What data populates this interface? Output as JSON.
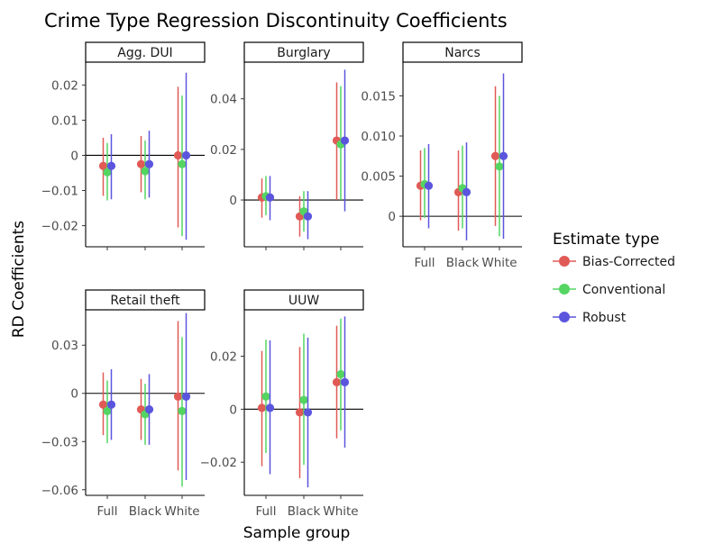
{
  "chart_data": {
    "type": "scatter",
    "title": "Crime Type Regression Discontinuity Coefficients",
    "xlabel": "Sample group",
    "ylabel": "RD Coefficients",
    "categories": [
      "Full",
      "Black",
      "White"
    ],
    "legend": {
      "title": "Estimate type",
      "placement": "right",
      "entries": [
        {
          "name": "Bias-Corrected",
          "color": "#e05a56"
        },
        {
          "name": "Conventional",
          "color": "#54d562"
        },
        {
          "name": "Robust",
          "color": "#5b55de"
        }
      ]
    },
    "panels": [
      {
        "label": "Agg. DUI",
        "ylim": [
          -0.026,
          0.0265
        ],
        "yticks": [
          -0.02,
          -0.01,
          0,
          0.01,
          0.02
        ],
        "ytick_labels": [
          "−0.02",
          "−0.01",
          "0",
          "0.01",
          "0.02"
        ],
        "show_xticks": false,
        "series": [
          {
            "name": "Bias-Corrected",
            "points": [
              {
                "x": "Full",
                "y": -0.003,
                "lo": -0.0115,
                "hi": 0.005
              },
              {
                "x": "Black",
                "y": -0.0025,
                "lo": -0.0105,
                "hi": 0.0055
              },
              {
                "x": "White",
                "y": 0.0,
                "lo": -0.0205,
                "hi": 0.0195
              }
            ]
          },
          {
            "name": "Conventional",
            "points": [
              {
                "x": "Full",
                "y": -0.0048,
                "lo": -0.0128,
                "hi": 0.0035
              },
              {
                "x": "Black",
                "y": -0.0045,
                "lo": -0.0125,
                "hi": 0.0042
              },
              {
                "x": "White",
                "y": -0.0025,
                "lo": -0.023,
                "hi": 0.017
              }
            ]
          },
          {
            "name": "Robust",
            "points": [
              {
                "x": "Full",
                "y": -0.003,
                "lo": -0.0125,
                "hi": 0.006
              },
              {
                "x": "Black",
                "y": -0.0025,
                "lo": -0.012,
                "hi": 0.007
              },
              {
                "x": "White",
                "y": 0.0,
                "lo": -0.024,
                "hi": 0.0235
              }
            ]
          }
        ]
      },
      {
        "label": "Burglary",
        "ylim": [
          -0.0185,
          0.0545
        ],
        "yticks": [
          0,
          0.02,
          0.04
        ],
        "ytick_labels": [
          "0",
          "0.02",
          "0.04"
        ],
        "show_xticks": false,
        "series": [
          {
            "name": "Bias-Corrected",
            "points": [
              {
                "x": "Full",
                "y": 0.001,
                "lo": -0.007,
                "hi": 0.0085
              },
              {
                "x": "Black",
                "y": -0.0065,
                "lo": -0.0145,
                "hi": 0.0015
              },
              {
                "x": "White",
                "y": 0.0235,
                "lo": 0.0,
                "hi": 0.0465
              }
            ]
          },
          {
            "name": "Conventional",
            "points": [
              {
                "x": "Full",
                "y": 0.0015,
                "lo": -0.006,
                "hi": 0.0095
              },
              {
                "x": "Black",
                "y": -0.0045,
                "lo": -0.0125,
                "hi": 0.0035
              },
              {
                "x": "White",
                "y": 0.022,
                "lo": 0.0,
                "hi": 0.045
              }
            ]
          },
          {
            "name": "Robust",
            "points": [
              {
                "x": "Full",
                "y": 0.001,
                "lo": -0.008,
                "hi": 0.0095
              },
              {
                "x": "Black",
                "y": -0.0065,
                "lo": -0.0155,
                "hi": 0.0035
              },
              {
                "x": "White",
                "y": 0.0235,
                "lo": -0.0045,
                "hi": 0.0515
              }
            ]
          }
        ]
      },
      {
        "label": "Narcs",
        "ylim": [
          -0.0038,
          0.0192
        ],
        "yticks": [
          0,
          0.005,
          0.01,
          0.015
        ],
        "ytick_labels": [
          "0",
          "0.005",
          "0.010",
          "0.015"
        ],
        "show_xticks": true,
        "series": [
          {
            "name": "Bias-Corrected",
            "points": [
              {
                "x": "Full",
                "y": 0.0038,
                "lo": -0.0005,
                "hi": 0.0082
              },
              {
                "x": "Black",
                "y": 0.003,
                "lo": -0.0018,
                "hi": 0.0082
              },
              {
                "x": "White",
                "y": 0.0075,
                "lo": -0.0012,
                "hi": 0.0162
              }
            ]
          },
          {
            "name": "Conventional",
            "points": [
              {
                "x": "Full",
                "y": 0.004,
                "lo": -0.0002,
                "hi": 0.0085
              },
              {
                "x": "Black",
                "y": 0.0035,
                "lo": -0.0015,
                "hi": 0.0088
              },
              {
                "x": "White",
                "y": 0.0062,
                "lo": -0.0025,
                "hi": 0.015
              }
            ]
          },
          {
            "name": "Robust",
            "points": [
              {
                "x": "Full",
                "y": 0.0038,
                "lo": -0.0015,
                "hi": 0.009
              },
              {
                "x": "Black",
                "y": 0.003,
                "lo": -0.003,
                "hi": 0.0092
              },
              {
                "x": "White",
                "y": 0.0075,
                "lo": -0.0028,
                "hi": 0.0178
              }
            ]
          }
        ]
      },
      {
        "label": "Retail theft",
        "ylim": [
          -0.0635,
          0.052
        ],
        "yticks": [
          -0.06,
          -0.03,
          0,
          0.03
        ],
        "ytick_labels": [
          "−0.06",
          "−0.03",
          "0",
          "0.03"
        ],
        "show_xticks": true,
        "series": [
          {
            "name": "Bias-Corrected",
            "points": [
              {
                "x": "Full",
                "y": -0.007,
                "lo": -0.026,
                "hi": 0.013
              },
              {
                "x": "Black",
                "y": -0.01,
                "lo": -0.029,
                "hi": 0.009
              },
              {
                "x": "White",
                "y": -0.002,
                "lo": -0.048,
                "hi": 0.045
              }
            ]
          },
          {
            "name": "Conventional",
            "points": [
              {
                "x": "Full",
                "y": -0.011,
                "lo": -0.031,
                "hi": 0.008
              },
              {
                "x": "Black",
                "y": -0.013,
                "lo": -0.032,
                "hi": 0.006
              },
              {
                "x": "White",
                "y": -0.011,
                "lo": -0.058,
                "hi": 0.035
              }
            ]
          },
          {
            "name": "Robust",
            "points": [
              {
                "x": "Full",
                "y": -0.007,
                "lo": -0.029,
                "hi": 0.015
              },
              {
                "x": "Black",
                "y": -0.01,
                "lo": -0.032,
                "hi": 0.012
              },
              {
                "x": "White",
                "y": -0.002,
                "lo": -0.054,
                "hi": 0.05
              }
            ]
          }
        ]
      },
      {
        "label": "UUW",
        "ylim": [
          -0.0325,
          0.0375
        ],
        "yticks": [
          -0.02,
          0,
          0.02
        ],
        "ytick_labels": [
          "−0.02",
          "0",
          "0.02"
        ],
        "show_xticks": true,
        "series": [
          {
            "name": "Bias-Corrected",
            "points": [
              {
                "x": "Full",
                "y": 0.0005,
                "lo": -0.0215,
                "hi": 0.022
              },
              {
                "x": "Black",
                "y": -0.0012,
                "lo": -0.026,
                "hi": 0.0235
              },
              {
                "x": "White",
                "y": 0.0102,
                "lo": -0.011,
                "hi": 0.0315
              }
            ]
          },
          {
            "name": "Conventional",
            "points": [
              {
                "x": "Full",
                "y": 0.0048,
                "lo": -0.0165,
                "hi": 0.0262
              },
              {
                "x": "Black",
                "y": 0.0035,
                "lo": -0.021,
                "hi": 0.0285
              },
              {
                "x": "White",
                "y": 0.0132,
                "lo": -0.008,
                "hi": 0.0342
              }
            ]
          },
          {
            "name": "Robust",
            "points": [
              {
                "x": "Full",
                "y": 0.0005,
                "lo": -0.0245,
                "hi": 0.026
              },
              {
                "x": "Black",
                "y": -0.0012,
                "lo": -0.0295,
                "hi": 0.027
              },
              {
                "x": "White",
                "y": 0.0102,
                "lo": -0.0145,
                "hi": 0.035
              }
            ]
          }
        ]
      }
    ]
  }
}
